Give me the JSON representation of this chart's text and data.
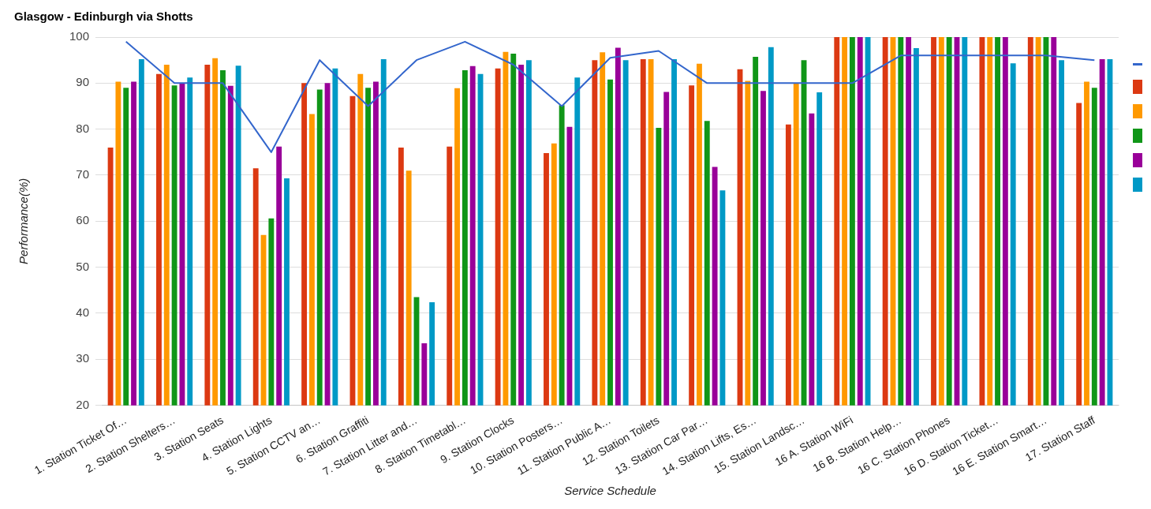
{
  "chart_data": {
    "type": "bar",
    "title": "Glasgow - Edinburgh via Shotts",
    "xlabel": "Service Schedule",
    "ylabel": "Performance(%)",
    "categories": [
      "1. Station Ticket Of…",
      "2. Station Shelters…",
      "3. Station Seats",
      "4. Station Lights",
      "5. Station CCTV an…",
      "6. Station Graffiti",
      "7. Station Litter and…",
      "8. Station Timetabl…",
      "9. Station Clocks",
      "10. Station Posters…",
      "11. Station Public A…",
      "12. Station Toilets",
      "13. Station Car Par…",
      "14. Station Lifts, Es…",
      "15. Station Landsc…",
      "16 A. Station WiFi",
      "16 B. Station Help…",
      "16 C. Station Phones",
      "16 D. Station Ticket…",
      "16 E. Station Smart…",
      "17. Station Staff"
    ],
    "series": [
      {
        "type": "line",
        "color": "#3366cc",
        "values": [
          99,
          90,
          90,
          75,
          95,
          85,
          95,
          99,
          94,
          85,
          95.5,
          97,
          90,
          90,
          90,
          90,
          96,
          96,
          96,
          96,
          95
        ]
      },
      {
        "color": "#dc3912",
        "values": [
          76,
          92,
          94,
          71.5,
          90,
          87.2,
          76,
          76.2,
          93.2,
          74.8,
          95,
          95.2,
          89.5,
          93,
          81,
          100,
          100,
          100,
          100,
          100,
          85.7
        ]
      },
      {
        "color": "#ff9900",
        "values": [
          90.3,
          94,
          95.4,
          57,
          83.3,
          92,
          71,
          88.9,
          96.8,
          76.9,
          96.7,
          95.2,
          94.2,
          90.5,
          89.9,
          100,
          100,
          100,
          100,
          100,
          90.3
        ]
      },
      {
        "color": "#109618",
        "values": [
          89,
          89.5,
          92.8,
          60.6,
          88.6,
          89,
          43.5,
          92.8,
          96.4,
          85.2,
          90.8,
          80.3,
          81.8,
          95.7,
          95,
          100,
          100,
          100,
          100,
          100,
          89
        ]
      },
      {
        "color": "#990099",
        "values": [
          90.3,
          90,
          89.4,
          76.2,
          90,
          90.3,
          33.5,
          93.7,
          94,
          80.5,
          97.7,
          88.1,
          71.8,
          88.3,
          83.4,
          100,
          100,
          100,
          100,
          100,
          95.2
        ]
      },
      {
        "color": "#0099c6",
        "values": [
          95.2,
          91.2,
          93.8,
          69.3,
          93.2,
          95.2,
          42.4,
          92,
          95,
          91.2,
          95,
          95.2,
          66.7,
          97.8,
          88,
          100,
          97.6,
          100,
          94.3,
          95,
          95.2
        ]
      }
    ],
    "ylim": [
      20,
      100
    ],
    "yticks": [
      20,
      30,
      40,
      50,
      60,
      70,
      80,
      90,
      100
    ],
    "grid": "y",
    "marker": "none"
  }
}
